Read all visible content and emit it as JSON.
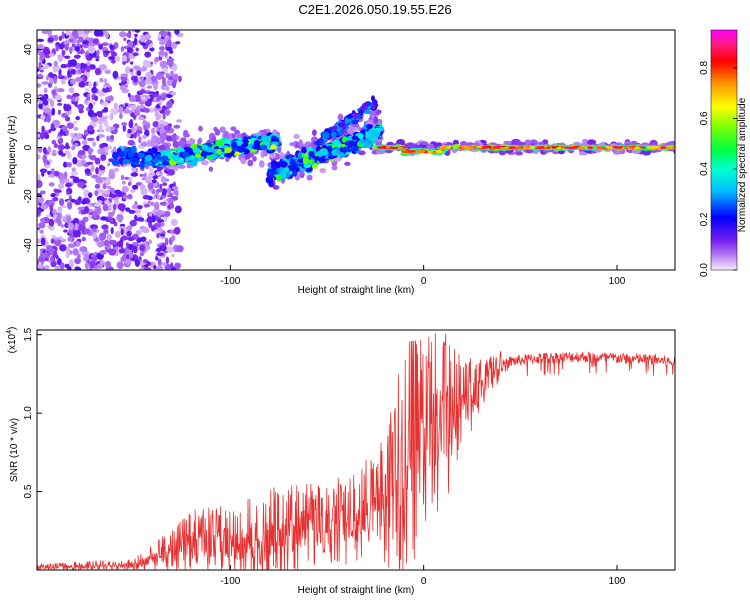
{
  "figure_title": "C2E1.2026.050.19.55.E26",
  "chart_data": [
    {
      "type": "heatmap",
      "title": "C2E1.2026.050.19.55.E26",
      "xlabel": "Height of straight line (km)",
      "ylabel": "Frequency (Hz)",
      "xlim": [
        -200,
        130
      ],
      "ylim": [
        -50,
        48
      ],
      "xticks": [
        -100,
        0,
        100
      ],
      "yticks": [
        -40,
        -20,
        0,
        20,
        40
      ],
      "colorbar": {
        "label": "Normalized spectral amplitude",
        "range": [
          0,
          0.95
        ],
        "ticks": [
          0,
          0.2,
          0.4,
          0.6,
          0.8
        ],
        "colormap": "rainbow (white-violet-blue-cyan-green-yellow-red-magenta)",
        "colors": [
          "#f6ecfb",
          "#a060f0",
          "#5a00f0",
          "#0000ff",
          "#00b0ff",
          "#00ffff",
          "#00ff40",
          "#80ff00",
          "#ffff00",
          "#ff8000",
          "#ff0000",
          "#ff2080",
          "#ff00ff"
        ]
      },
      "features": [
        {
          "name": "scattered noise",
          "x_range": [
            -200,
            -130
          ],
          "freq_range": [
            -50,
            48
          ],
          "amplitude": 0.1
        },
        {
          "name": "band segment 1",
          "x_range": [
            -140,
            -75
          ],
          "freq_center": [
            -5,
            3
          ],
          "amplitude": 0.35
        },
        {
          "name": "band segment 2",
          "x_range": [
            -80,
            -22
          ],
          "freq_center": [
            -10,
            15
          ],
          "amplitude": 0.3
        },
        {
          "name": "stable line",
          "x_range": [
            -25,
            130
          ],
          "freq_center": [
            0,
            0
          ],
          "amplitude": 0.85
        }
      ]
    },
    {
      "type": "line",
      "title": "",
      "xlabel": "Height of straight line (km)",
      "ylabel": "SNR (10 * v/v)",
      "y_scale_label": "(x10",
      "y_scale_exp": "4",
      "y_scale_close": ")",
      "xlim": [
        -200,
        130
      ],
      "ylim": [
        0,
        1.53
      ],
      "xticks": [
        -100,
        0,
        100
      ],
      "yticks": [
        0.5,
        1.0,
        1.5
      ],
      "ytick_labels": [
        "0.5",
        "1.0",
        "1.5"
      ],
      "color": "#e83030",
      "envelope": {
        "x": [
          -200,
          -150,
          -140,
          -130,
          -120,
          -100,
          -80,
          -70,
          -55,
          -35,
          -20,
          -10,
          0,
          10,
          20,
          30,
          40,
          45,
          60,
          80,
          100,
          120,
          130
        ],
        "y_mean": [
          0.02,
          0.03,
          0.08,
          0.13,
          0.17,
          0.17,
          0.19,
          0.25,
          0.28,
          0.33,
          0.45,
          0.65,
          0.85,
          0.95,
          1.05,
          1.18,
          1.3,
          1.33,
          1.35,
          1.36,
          1.35,
          1.34,
          1.32
        ],
        "y_max": [
          0.04,
          0.07,
          0.17,
          0.27,
          0.38,
          0.42,
          0.52,
          0.55,
          0.55,
          0.62,
          0.85,
          1.45,
          1.47,
          1.53,
          1.35,
          1.36,
          1.4,
          1.4,
          1.4,
          1.4,
          1.4,
          1.38,
          1.36
        ]
      }
    }
  ]
}
